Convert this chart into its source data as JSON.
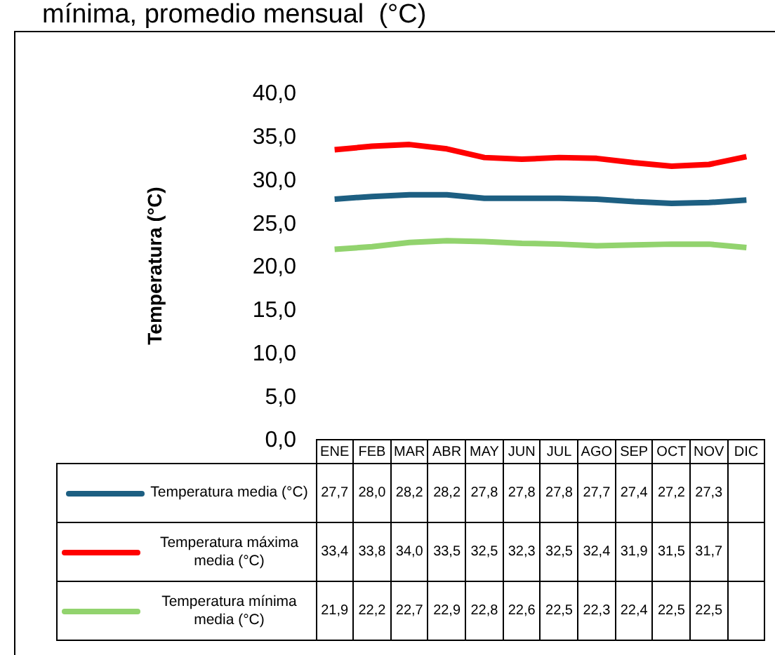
{
  "chart_data": {
    "type": "line",
    "title": "mínima, promedio mensual  (°C)",
    "ylabel": "Temperatura (°C)",
    "categories": [
      "ENE",
      "FEB",
      "MAR",
      "ABR",
      "MAY",
      "JUN",
      "JUL",
      "AGO",
      "SEP",
      "OCT",
      "NOV",
      "DIC"
    ],
    "series": [
      {
        "name": "Temperatura media (°C)",
        "color": "#1d5f82",
        "values": [
          27.7,
          28.0,
          28.2,
          28.2,
          27.8,
          27.8,
          27.8,
          27.7,
          27.4,
          27.2,
          27.3,
          27.6
        ],
        "value_labels": [
          "27,7",
          "28,0",
          "28,2",
          "28,2",
          "27,8",
          "27,8",
          "27,8",
          "27,7",
          "27,4",
          "27,2",
          "27,3",
          null
        ]
      },
      {
        "name": "Temperatura máxima media (°C)",
        "color": "#ff0000",
        "values": [
          33.4,
          33.8,
          34.0,
          33.5,
          32.5,
          32.3,
          32.5,
          32.4,
          31.9,
          31.5,
          31.7,
          32.6
        ],
        "value_labels": [
          "33,4",
          "33,8",
          "34,0",
          "33,5",
          "32,5",
          "32,3",
          "32,5",
          "32,4",
          "31,9",
          "31,5",
          "31,7",
          null
        ]
      },
      {
        "name": "Temperatura mínima media (°C)",
        "color": "#92d36e",
        "values": [
          21.9,
          22.2,
          22.7,
          22.9,
          22.8,
          22.6,
          22.5,
          22.3,
          22.4,
          22.5,
          22.5,
          22.1
        ],
        "value_labels": [
          "21,9",
          "22,2",
          "22,7",
          "22,9",
          "22,8",
          "22,6",
          "22,5",
          "22,3",
          "22,4",
          "22,5",
          "22,5",
          null
        ]
      }
    ],
    "ylim": [
      0,
      40
    ],
    "yticks": [
      {
        "value": 0,
        "label": "0,0"
      },
      {
        "value": 5,
        "label": "5,0"
      },
      {
        "value": 10,
        "label": "10,0"
      },
      {
        "value": 15,
        "label": "15,0"
      },
      {
        "value": 20,
        "label": "20,0"
      },
      {
        "value": 25,
        "label": "25,0"
      },
      {
        "value": 30,
        "label": "30,0"
      },
      {
        "value": 35,
        "label": "35,0"
      },
      {
        "value": 40,
        "label": "40,0"
      }
    ],
    "grid": false,
    "legend": "bottom left",
    "marker": "none",
    "line_style": "solid"
  }
}
